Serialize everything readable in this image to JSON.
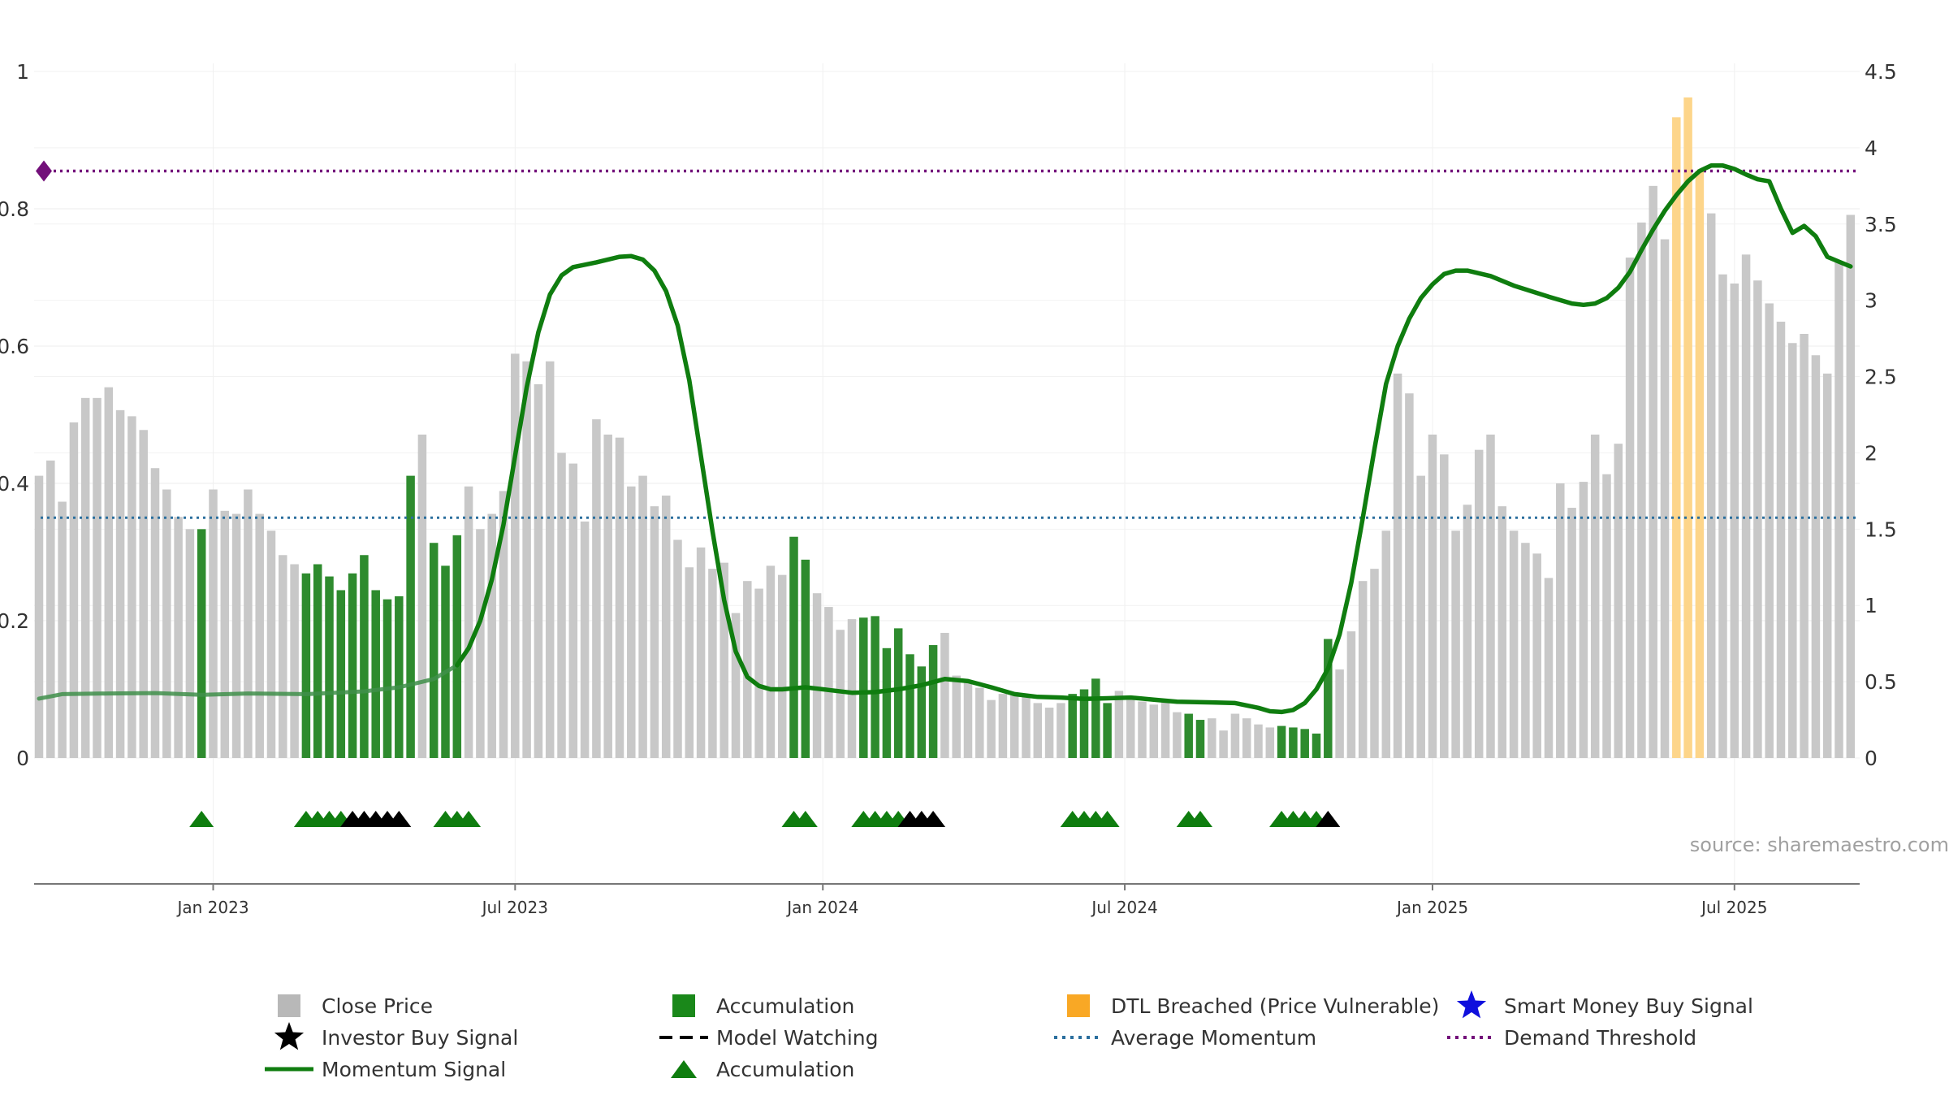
{
  "chart_data": {
    "type": "bar",
    "source": "source: sharemaestro.com",
    "left_axis": {
      "ylim": [
        0,
        1
      ],
      "ticks": [
        "0",
        "0.2",
        "0.4",
        "0.6",
        "0.8",
        "1"
      ]
    },
    "right_axis": {
      "ylim": [
        0,
        4.5
      ],
      "ticks": [
        "0",
        "0.5",
        "1",
        "1.5",
        "2",
        "2.5",
        "3",
        "3.5",
        "4",
        "4.5"
      ]
    },
    "x_axis": {
      "ticks": [
        {
          "label": "Jan 2023",
          "week": 15
        },
        {
          "label": "Jul 2023",
          "week": 41
        },
        {
          "label": "Jan 2024",
          "week": 67.5
        },
        {
          "label": "Jul 2024",
          "week": 93.5
        },
        {
          "label": "Jan 2025",
          "week": 120
        },
        {
          "label": "Jul 2025",
          "week": 146
        }
      ]
    },
    "close_price": [
      1.85,
      1.95,
      1.68,
      2.2,
      2.36,
      2.36,
      2.43,
      2.28,
      2.24,
      2.15,
      1.9,
      1.76,
      1.58,
      1.5,
      1.5,
      1.76,
      1.62,
      1.6,
      1.76,
      1.6,
      1.49,
      1.33,
      1.27,
      1.21,
      1.27,
      1.19,
      1.1,
      1.21,
      1.33,
      1.1,
      1.04,
      1.06,
      1.85,
      2.12,
      1.41,
      1.26,
      1.46,
      1.78,
      1.5,
      1.6,
      1.75,
      2.65,
      2.6,
      2.45,
      2.6,
      2.0,
      1.93,
      1.55,
      2.22,
      2.12,
      2.1,
      1.78,
      1.85,
      1.65,
      1.72,
      1.43,
      1.25,
      1.38,
      1.24,
      1.28,
      0.95,
      1.16,
      1.11,
      1.26,
      1.2,
      1.45,
      1.3,
      1.08,
      0.99,
      0.84,
      0.91,
      0.92,
      0.93,
      0.72,
      0.85,
      0.68,
      0.6,
      0.74,
      0.82,
      0.54,
      0.5,
      0.46,
      0.38,
      0.42,
      0.41,
      0.4,
      0.36,
      0.33,
      0.36,
      0.42,
      0.45,
      0.52,
      0.36,
      0.44,
      0.4,
      0.37,
      0.35,
      0.37,
      0.3,
      0.29,
      0.25,
      0.26,
      0.18,
      0.29,
      0.26,
      0.22,
      0.2,
      0.21,
      0.2,
      0.19,
      0.16,
      0.78,
      0.58,
      0.83,
      1.16,
      1.24,
      1.49,
      2.52,
      2.39,
      1.85,
      2.12,
      1.99,
      1.49,
      1.66,
      2.02,
      2.12,
      1.65,
      1.49,
      1.41,
      1.34,
      1.18,
      1.8,
      1.64,
      1.81,
      2.12,
      1.86,
      2.06,
      3.28,
      3.51,
      3.75,
      3.4,
      4.2,
      4.33,
      3.85,
      3.57,
      3.17,
      3.11,
      3.3,
      3.13,
      2.98,
      2.86,
      2.72,
      2.78,
      2.64,
      2.52,
      3.25,
      3.56
    ],
    "accumulation_weeks": [
      14,
      23,
      24,
      25,
      26,
      27,
      28,
      29,
      30,
      31,
      32,
      34,
      35,
      36,
      65,
      66,
      71,
      72,
      73,
      74,
      75,
      76,
      77,
      89,
      90,
      91,
      92,
      99,
      100,
      107,
      108,
      109,
      110,
      111
    ],
    "dtl_breached_weeks": [
      141,
      142,
      143
    ],
    "momentum_signal": [
      [
        0,
        0.0865
      ],
      [
        2,
        0.093
      ],
      [
        6,
        0.094
      ],
      [
        10,
        0.0945
      ],
      [
        14,
        0.092
      ],
      [
        18,
        0.094
      ],
      [
        23,
        0.093
      ],
      [
        28,
        0.097
      ],
      [
        31,
        0.103
      ],
      [
        34,
        0.115
      ],
      [
        36,
        0.135
      ],
      [
        37,
        0.16
      ],
      [
        38,
        0.2
      ],
      [
        39,
        0.26
      ],
      [
        40,
        0.34
      ],
      [
        41,
        0.44
      ],
      [
        42,
        0.54
      ],
      [
        43,
        0.62
      ],
      [
        44,
        0.675
      ],
      [
        45,
        0.703
      ],
      [
        46,
        0.715
      ],
      [
        48,
        0.722
      ],
      [
        50,
        0.73
      ],
      [
        51,
        0.731
      ],
      [
        52,
        0.726
      ],
      [
        53,
        0.71
      ],
      [
        54,
        0.68
      ],
      [
        55,
        0.63
      ],
      [
        56,
        0.55
      ],
      [
        57,
        0.44
      ],
      [
        58,
        0.33
      ],
      [
        59,
        0.23
      ],
      [
        60,
        0.155
      ],
      [
        61,
        0.118
      ],
      [
        62,
        0.105
      ],
      [
        63,
        0.1
      ],
      [
        64,
        0.1
      ],
      [
        66,
        0.103
      ],
      [
        68,
        0.099
      ],
      [
        70,
        0.095
      ],
      [
        72,
        0.096
      ],
      [
        74,
        0.1
      ],
      [
        76,
        0.106
      ],
      [
        78,
        0.115
      ],
      [
        80,
        0.112
      ],
      [
        82,
        0.103
      ],
      [
        84,
        0.093
      ],
      [
        86,
        0.089
      ],
      [
        88,
        0.088
      ],
      [
        90,
        0.086
      ],
      [
        92,
        0.087
      ],
      [
        94,
        0.088
      ],
      [
        96,
        0.085
      ],
      [
        98,
        0.082
      ],
      [
        101,
        0.081
      ],
      [
        103,
        0.08
      ],
      [
        105,
        0.073
      ],
      [
        106,
        0.068
      ],
      [
        107,
        0.067
      ],
      [
        108,
        0.07
      ],
      [
        109,
        0.08
      ],
      [
        110,
        0.1
      ],
      [
        111,
        0.13
      ],
      [
        112,
        0.18
      ],
      [
        113,
        0.255
      ],
      [
        114,
        0.35
      ],
      [
        115,
        0.45
      ],
      [
        116,
        0.545
      ],
      [
        117,
        0.6
      ],
      [
        118,
        0.64
      ],
      [
        119,
        0.67
      ],
      [
        120,
        0.69
      ],
      [
        121,
        0.705
      ],
      [
        122,
        0.71
      ],
      [
        123,
        0.71
      ],
      [
        125,
        0.702
      ],
      [
        127,
        0.688
      ],
      [
        130,
        0.672
      ],
      [
        132,
        0.662
      ],
      [
        133,
        0.66
      ],
      [
        134,
        0.662
      ],
      [
        135,
        0.67
      ],
      [
        136,
        0.685
      ],
      [
        137,
        0.708
      ],
      [
        138,
        0.74
      ],
      [
        139,
        0.77
      ],
      [
        140,
        0.797
      ],
      [
        141,
        0.82
      ],
      [
        142,
        0.84
      ],
      [
        143,
        0.855
      ],
      [
        144,
        0.863
      ],
      [
        145,
        0.863
      ],
      [
        146,
        0.858
      ],
      [
        147,
        0.85
      ],
      [
        148,
        0.843
      ],
      [
        149,
        0.84
      ],
      [
        150,
        0.8
      ],
      [
        151,
        0.765
      ],
      [
        152,
        0.775
      ],
      [
        153,
        0.76
      ],
      [
        154,
        0.73
      ],
      [
        155,
        0.723
      ],
      [
        156,
        0.716
      ]
    ],
    "average_momentum": 0.35,
    "demand_threshold": 0.855,
    "accumulation_markers": [
      14,
      23,
      24,
      25,
      26,
      35,
      36,
      37,
      65,
      66,
      71,
      72,
      73,
      74,
      89,
      90,
      91,
      92,
      99,
      100,
      107,
      108,
      109,
      110
    ],
    "investor_buy_markers": [
      27,
      28,
      29,
      30,
      31,
      75,
      76,
      77,
      111
    ],
    "legend": [
      {
        "label": "Close Price",
        "symbol": "gray-square"
      },
      {
        "label": "Accumulation",
        "symbol": "green-square"
      },
      {
        "label": "DTL Breached (Price Vulnerable)",
        "symbol": "orange-square"
      },
      {
        "label": "Smart Money Buy Signal",
        "symbol": "blue-star"
      },
      {
        "label": "Investor Buy Signal",
        "symbol": "black-star"
      },
      {
        "label": "Model Watching",
        "symbol": "black-dashed-line"
      },
      {
        "label": "Average Momentum",
        "symbol": "blue-dotted-line"
      },
      {
        "label": "Demand Threshold",
        "symbol": "purple-dotted-line"
      },
      {
        "label": "Momentum Signal",
        "symbol": "green-line"
      },
      {
        "label": "Accumulation",
        "symbol": "green-triangle"
      }
    ]
  },
  "colors": {
    "price_bar": "#c8c8c8",
    "accumulation": "#2e8b2e",
    "dtl_breached": "#fdd58a",
    "momentum": "#0f7d0f",
    "average_momentum": "#2b6f9e",
    "demand_threshold": "#73107a",
    "investor_buy": "#000000",
    "smart_money": "#1010dd",
    "triangle": "#0f7d0f"
  }
}
